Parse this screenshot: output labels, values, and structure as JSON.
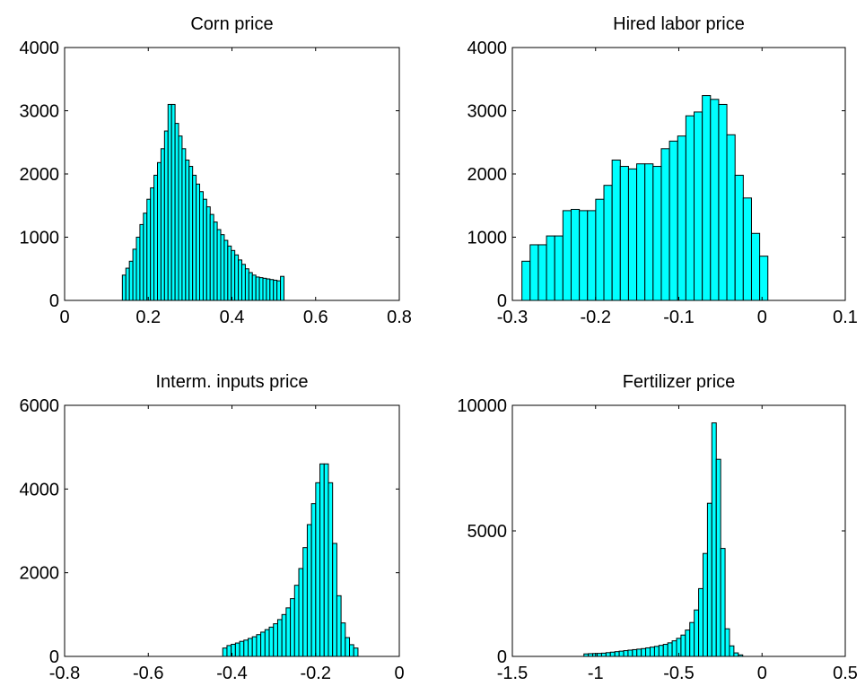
{
  "chart_data": [
    {
      "type": "bar",
      "title": "Corn price",
      "xlabel": "",
      "ylabel": "",
      "xlim": [
        0,
        0.8
      ],
      "ylim": [
        0,
        4000
      ],
      "xticks": [
        0,
        0.2,
        0.4,
        0.6,
        0.8
      ],
      "yticks": [
        0,
        1000,
        2000,
        3000,
        4000
      ],
      "xtick_labels": [
        "0",
        "0.2",
        "0.4",
        "0.6",
        "0.8"
      ],
      "ytick_labels": [
        "0",
        "1000",
        "2000",
        "3000",
        "4000"
      ],
      "bar_color": "#00ffff",
      "bin_start": 0.138,
      "bin_width": 0.0084,
      "values": [
        400,
        510,
        620,
        810,
        1000,
        1200,
        1380,
        1600,
        1780,
        1980,
        2180,
        2400,
        2680,
        3100,
        3100,
        2800,
        2600,
        2400,
        2220,
        2120,
        1980,
        1840,
        1720,
        1600,
        1480,
        1360,
        1240,
        1120,
        1040,
        950,
        860,
        790,
        720,
        640,
        570,
        500,
        440,
        400,
        370,
        360,
        350,
        340,
        330,
        320,
        310,
        380
      ]
    },
    {
      "type": "bar",
      "title": "Hired labor price",
      "xlabel": "",
      "ylabel": "",
      "xlim": [
        -0.3,
        0.1
      ],
      "ylim": [
        0,
        4000
      ],
      "xticks": [
        -0.3,
        -0.2,
        -0.1,
        0,
        0.1
      ],
      "yticks": [
        0,
        1000,
        2000,
        3000,
        4000
      ],
      "xtick_labels": [
        "-0.3",
        "-0.2",
        "-0.1",
        "0",
        "0.1"
      ],
      "ytick_labels": [
        "0",
        "1000",
        "2000",
        "3000",
        "4000"
      ],
      "bar_color": "#00ffff",
      "bin_start": -0.2885,
      "bin_width": 0.00985,
      "values": [
        620,
        880,
        880,
        1020,
        1020,
        1420,
        1440,
        1420,
        1420,
        1600,
        1820,
        2220,
        2120,
        2080,
        2160,
        2160,
        2120,
        2400,
        2520,
        2600,
        2920,
        2980,
        3240,
        3180,
        3100,
        2620,
        1980,
        1620,
        1060,
        700
      ]
    },
    {
      "type": "bar",
      "title": "Interm. inputs price",
      "xlabel": "",
      "ylabel": "",
      "xlim": [
        -0.8,
        0
      ],
      "ylim": [
        0,
        6000
      ],
      "xticks": [
        -0.8,
        -0.6,
        -0.4,
        -0.2,
        0
      ],
      "yticks": [
        0,
        2000,
        4000,
        6000
      ],
      "xtick_labels": [
        "-0.8",
        "-0.6",
        "-0.4",
        "-0.2",
        "0"
      ],
      "ytick_labels": [
        "0",
        "2000",
        "4000",
        "6000"
      ],
      "bar_color": "#00ffff",
      "bin_start": -0.422,
      "bin_width": 0.0101,
      "values": [
        200,
        260,
        290,
        320,
        360,
        390,
        430,
        470,
        520,
        580,
        640,
        700,
        780,
        880,
        1000,
        1160,
        1380,
        1700,
        2100,
        2600,
        3150,
        3650,
        4150,
        4600,
        4600,
        4150,
        2700,
        1450,
        800,
        450,
        280,
        200
      ]
    },
    {
      "type": "bar",
      "title": "Fertilizer price",
      "xlabel": "",
      "ylabel": "",
      "xlim": [
        -1.5,
        0.5
      ],
      "ylim": [
        0,
        10000
      ],
      "xticks": [
        -1.5,
        -1,
        -0.5,
        0,
        0.5
      ],
      "yticks": [
        0,
        5000,
        10000
      ],
      "xtick_labels": [
        "-1.5",
        "-1",
        "-0.5",
        "0",
        "0.5"
      ],
      "ytick_labels": [
        "0",
        "5000",
        "10000"
      ],
      "bar_color": "#00ffff",
      "bin_start": -1.07,
      "bin_width": 0.0265,
      "values": [
        100,
        110,
        115,
        120,
        130,
        150,
        170,
        190,
        210,
        230,
        250,
        270,
        290,
        310,
        340,
        370,
        400,
        440,
        480,
        540,
        620,
        720,
        850,
        1050,
        1350,
        1850,
        2700,
        4100,
        6100,
        9300,
        7850,
        4300,
        1100,
        420,
        140,
        60
      ]
    }
  ]
}
